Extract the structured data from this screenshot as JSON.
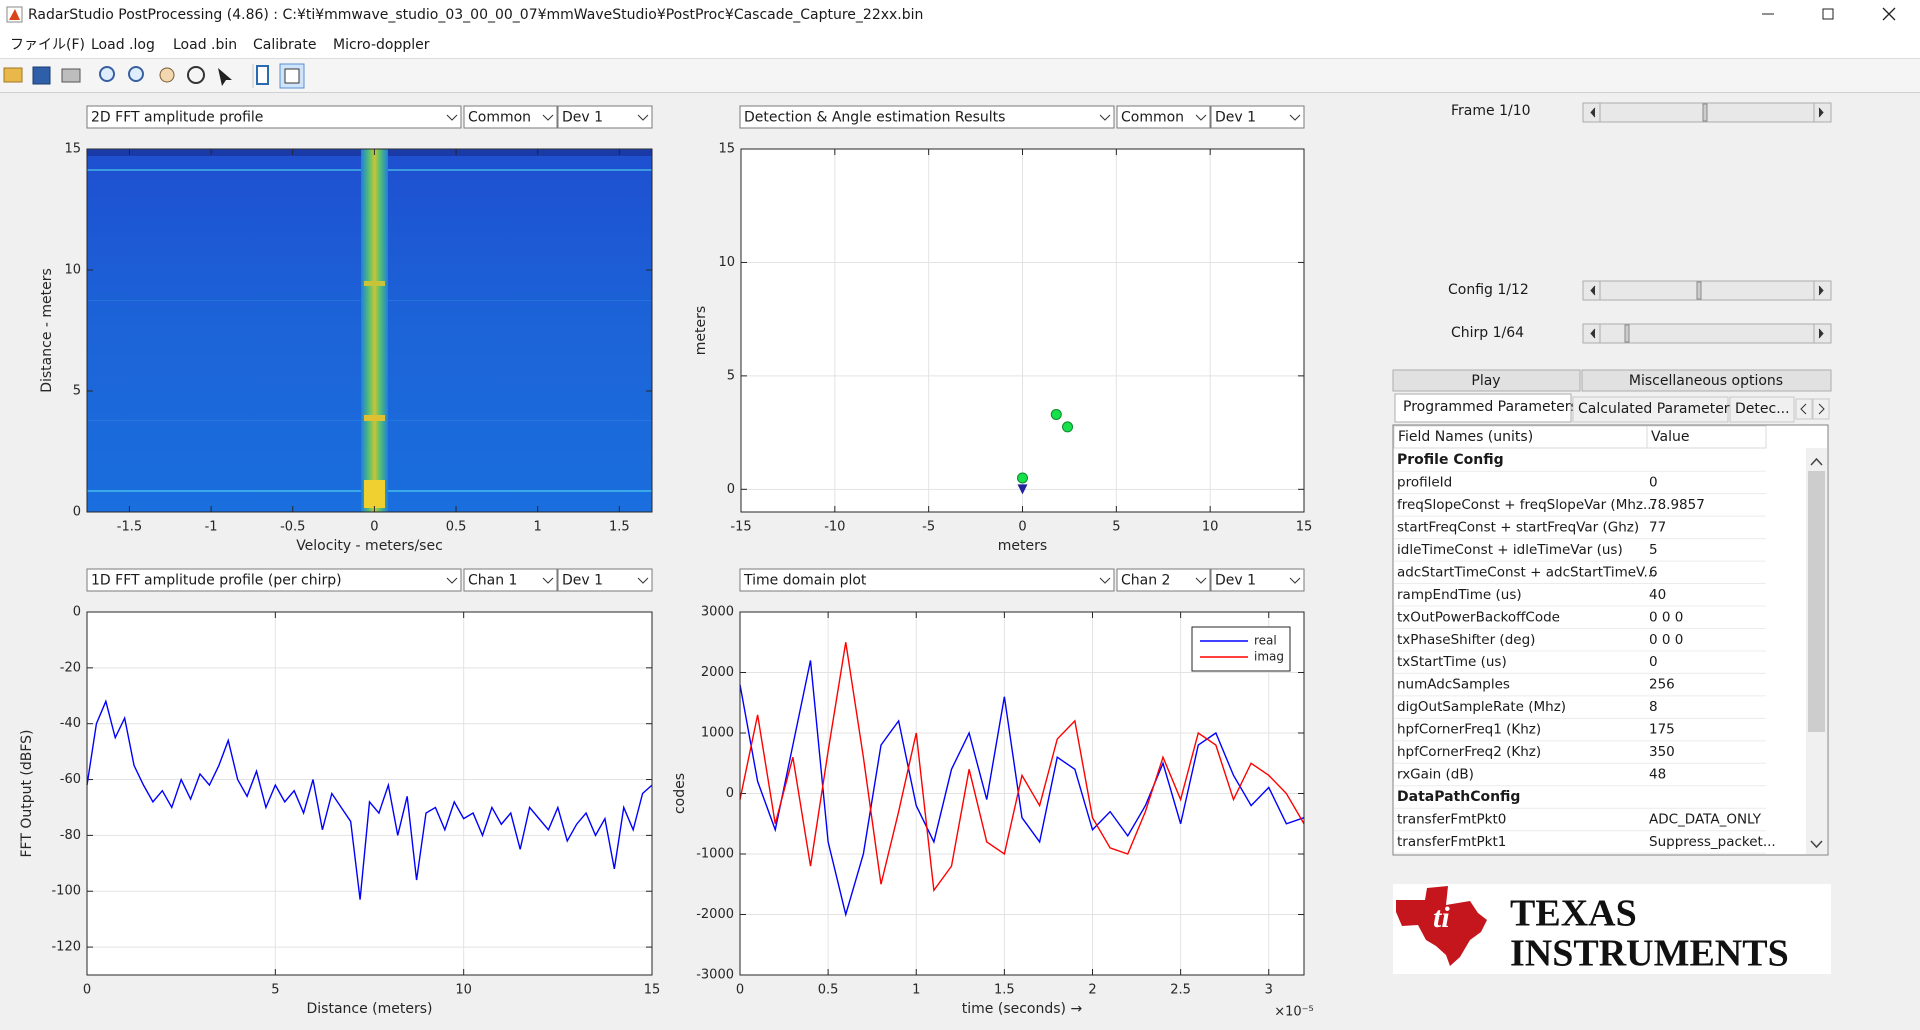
{
  "window": {
    "title": "RadarStudio PostProcessing (4.86)  : C:¥ti¥mmwave_studio_03_00_00_07¥mmWaveStudio¥PostProc¥Cascade_Capture_22xx.bin",
    "menu": [
      "ファイル(F)",
      "Load .log",
      "Load .bin",
      "Calibrate",
      "Micro-doppler"
    ]
  },
  "panels": [
    {
      "selectors": [
        "2D FFT amplitude profile",
        "Common",
        "Dev 1"
      ]
    },
    {
      "selectors": [
        "Detection & Angle estimation Results",
        "Common",
        "Dev 1"
      ]
    },
    {
      "selectors": [
        "1D FFT amplitude profile (per chirp)",
        "Chan 1",
        "Dev 1"
      ]
    },
    {
      "selectors": [
        "Time domain plot",
        "Chan 2",
        "Dev 1"
      ]
    }
  ],
  "chart_data": [
    {
      "type": "heatmap",
      "xlabel": "Velocity - meters/sec",
      "ylabel": "Distance - meters",
      "xlim": [
        -1.76,
        1.7
      ],
      "xticks": [
        -1.5,
        -1,
        -0.5,
        0,
        0.5,
        1,
        1.5
      ],
      "ylim": [
        0,
        15
      ],
      "yticks": [
        0,
        5,
        10,
        15
      ],
      "grid": false
    },
    {
      "type": "scatter",
      "xlabel": "meters",
      "ylabel": "meters",
      "xlim": [
        -15,
        15
      ],
      "xticks": [
        -15,
        -10,
        -5,
        0,
        5,
        10,
        15
      ],
      "ylim": [
        -1,
        15
      ],
      "yticks": [
        0,
        5,
        10,
        15
      ],
      "grid": true,
      "series": [
        {
          "color": "#16e04a",
          "x": [
            0,
            1.8,
            2.4
          ],
          "values": [
            0.5,
            3.3,
            2.75
          ]
        }
      ],
      "markers": [
        {
          "shape": "triangle",
          "color": "#22229a",
          "x": 0,
          "y": 0
        }
      ]
    },
    {
      "type": "line",
      "xlabel": "Distance (meters)",
      "ylabel": "FFT Output (dBFS)",
      "xlim": [
        0,
        15
      ],
      "xticks": [
        0,
        5,
        10,
        15
      ],
      "ylim": [
        -130,
        0
      ],
      "yticks": [
        0,
        -20,
        -40,
        -60,
        -80,
        -100,
        -120
      ],
      "grid": true,
      "x": [
        0,
        0.25,
        0.5,
        0.75,
        1,
        1.25,
        1.5,
        1.75,
        2,
        2.25,
        2.5,
        2.75,
        3,
        3.25,
        3.5,
        3.75,
        4,
        4.25,
        4.5,
        4.75,
        5,
        5.25,
        5.5,
        5.75,
        6,
        6.25,
        6.5,
        6.75,
        7,
        7.25,
        7.5,
        7.75,
        8,
        8.25,
        8.5,
        8.75,
        9,
        9.25,
        9.5,
        9.75,
        10,
        10.25,
        10.5,
        10.75,
        11,
        11.25,
        11.5,
        11.75,
        12,
        12.25,
        12.5,
        12.75,
        13,
        13.25,
        13.5,
        13.75,
        14,
        14.25,
        14.5,
        14.75,
        15
      ],
      "series": [
        {
          "color": "#0000ff",
          "values": [
            -62,
            -40,
            -32,
            -45,
            -38,
            -55,
            -62,
            -68,
            -64,
            -70,
            -60,
            -67,
            -58,
            -62,
            -55,
            -46,
            -60,
            -66,
            -57,
            -70,
            -62,
            -68,
            -64,
            -72,
            -60,
            -78,
            -65,
            -70,
            -75,
            -103,
            -68,
            -72,
            -62,
            -80,
            -66,
            -96,
            -72,
            -70,
            -78,
            -68,
            -74,
            -72,
            -80,
            -70,
            -76,
            -72,
            -85,
            -70,
            -74,
            -78,
            -70,
            -82,
            -76,
            -72,
            -80,
            -74,
            -92,
            -70,
            -78,
            -65,
            -62
          ]
        }
      ]
    },
    {
      "type": "line",
      "xlabel": "time  (seconds) →",
      "ylabel": "codes",
      "x_multiplier": "×10⁻⁵",
      "xlim": [
        0,
        3.2
      ],
      "xticks": [
        0,
        0.5,
        1,
        1.5,
        2,
        2.5,
        3
      ],
      "ylim": [
        -3000,
        3000
      ],
      "yticks": [
        3000,
        2000,
        1000,
        0,
        -1000,
        -2000,
        -3000
      ],
      "grid": true,
      "legend": "northeast",
      "x": [
        0,
        0.1,
        0.2,
        0.3,
        0.4,
        0.5,
        0.6,
        0.7,
        0.8,
        0.9,
        1,
        1.1,
        1.2,
        1.3,
        1.4,
        1.5,
        1.6,
        1.7,
        1.8,
        1.9,
        2,
        2.1,
        2.2,
        2.3,
        2.4,
        2.5,
        2.6,
        2.7,
        2.8,
        2.9,
        3,
        3.1,
        3.2
      ],
      "series": [
        {
          "name": "real",
          "color": "#0000ff",
          "values": [
            1800,
            200,
            -600,
            800,
            2200,
            -800,
            -2000,
            -1000,
            800,
            1200,
            -200,
            -800,
            400,
            1000,
            -100,
            1600,
            -400,
            -800,
            600,
            400,
            -600,
            -300,
            -700,
            -200,
            500,
            -500,
            800,
            1000,
            300,
            -200,
            100,
            -500,
            -400
          ]
        },
        {
          "name": "imag",
          "color": "#ff0000",
          "values": [
            -100,
            1300,
            -500,
            600,
            -1200,
            700,
            2500,
            600,
            -1500,
            -300,
            1000,
            -1600,
            -1200,
            400,
            -800,
            -1000,
            300,
            -200,
            900,
            1200,
            -400,
            -900,
            -1000,
            -300,
            600,
            -100,
            1000,
            800,
            -100,
            500,
            300,
            0,
            -500
          ]
        }
      ]
    }
  ],
  "controls": {
    "frame": "Frame 1/10",
    "config": "Config 1/12",
    "chirp": "Chirp 1/64",
    "buttons": [
      "Play",
      "Miscellaneous options"
    ],
    "tabs": [
      "Programmed Parameters",
      "Calculated Parameters",
      "Detec..."
    ]
  },
  "table": {
    "header": [
      "Field Names   (units)",
      "Value"
    ],
    "rows": [
      {
        "section": "Profile Config"
      },
      {
        "field": "profileId",
        "value": 0
      },
      {
        "field": "freqSlopeConst + freqSlopeVar (Mhz...",
        "value": 78.9857
      },
      {
        "field": "startFreqConst + startFreqVar (Ghz)",
        "value": 77
      },
      {
        "field": "idleTimeConst + idleTimeVar (us)",
        "value": 5
      },
      {
        "field": "adcStartTimeConst + adcStartTimeV...",
        "value": 6
      },
      {
        "field": "rampEndTime (us)",
        "value": 40
      },
      {
        "field": "txOutPowerBackoffCode",
        "value": "0 0 0"
      },
      {
        "field": "txPhaseShifter (deg)",
        "value": "0 0 0"
      },
      {
        "field": "txStartTime (us)",
        "value": 0
      },
      {
        "field": "numAdcSamples",
        "value": 256
      },
      {
        "field": "digOutSampleRate (Mhz)",
        "value": 8
      },
      {
        "field": "hpfCornerFreq1 (Khz)",
        "value": 175
      },
      {
        "field": "hpfCornerFreq2 (Khz)",
        "value": 350
      },
      {
        "field": "rxGain (dB)",
        "value": 48
      },
      {
        "section": "DataPathConfig"
      },
      {
        "field": "transferFmtPkt0",
        "value": "ADC_DATA_ONLY"
      },
      {
        "field": "transferFmtPkt1",
        "value": "Suppress_packet..."
      }
    ]
  },
  "logo": {
    "line1": "TEXAS",
    "line2": "INSTRUMENTS"
  }
}
